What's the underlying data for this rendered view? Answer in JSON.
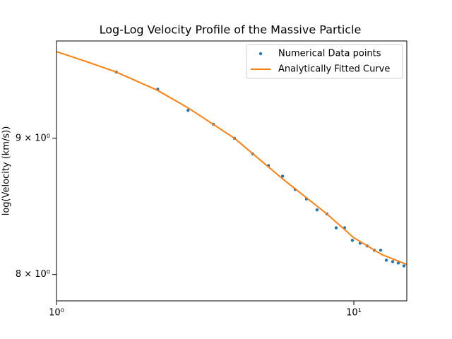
{
  "chart_data": {
    "type": "line",
    "title": "Log-Log Velocity Profile of the Massive Particle",
    "y_label": "log(Velocity (km/s))",
    "xscale": "log",
    "yscale": "log",
    "xlim": [
      1,
      15.07
    ],
    "ylim": [
      7.82,
      9.79
    ],
    "xticks": [
      {
        "value": 1,
        "label": "10⁰"
      },
      {
        "value": 10,
        "label": "10¹"
      }
    ],
    "yticks": [
      {
        "value": 8,
        "label": "8 × 10⁰"
      },
      {
        "value": 9,
        "label": "9 × 10⁰"
      }
    ],
    "legend": "upper right",
    "series": [
      {
        "name": "Numerical Data points",
        "color": "#1f77b4",
        "style": "points",
        "x": [
          1.59,
          2.19,
          2.77,
          3.37,
          3.97,
          4.57,
          5.16,
          5.76,
          6.35,
          6.93,
          7.52,
          8.12,
          8.72,
          9.31,
          9.89,
          10.5,
          11.09,
          11.72,
          12.31,
          12.86,
          13.51,
          14.11,
          14.74
        ],
        "values": [
          9.53,
          9.39,
          9.22,
          9.11,
          9.0,
          8.88,
          8.79,
          8.71,
          8.61,
          8.54,
          8.46,
          8.43,
          8.33,
          8.33,
          8.24,
          8.22,
          8.2,
          8.17,
          8.17,
          8.1,
          8.09,
          8.08,
          8.06
        ]
      },
      {
        "name": "Analytically Fitted Curve",
        "color": "#ff7f0e",
        "style": "line",
        "x": [
          1,
          1.25,
          1.59,
          2.19,
          2.77,
          3.97,
          5.76,
          8.12,
          9.98,
          12.4,
          15.07
        ],
        "values": [
          9.7,
          9.62,
          9.53,
          9.38,
          9.24,
          9.0,
          8.69,
          8.43,
          8.26,
          8.14,
          8.07
        ]
      }
    ]
  }
}
